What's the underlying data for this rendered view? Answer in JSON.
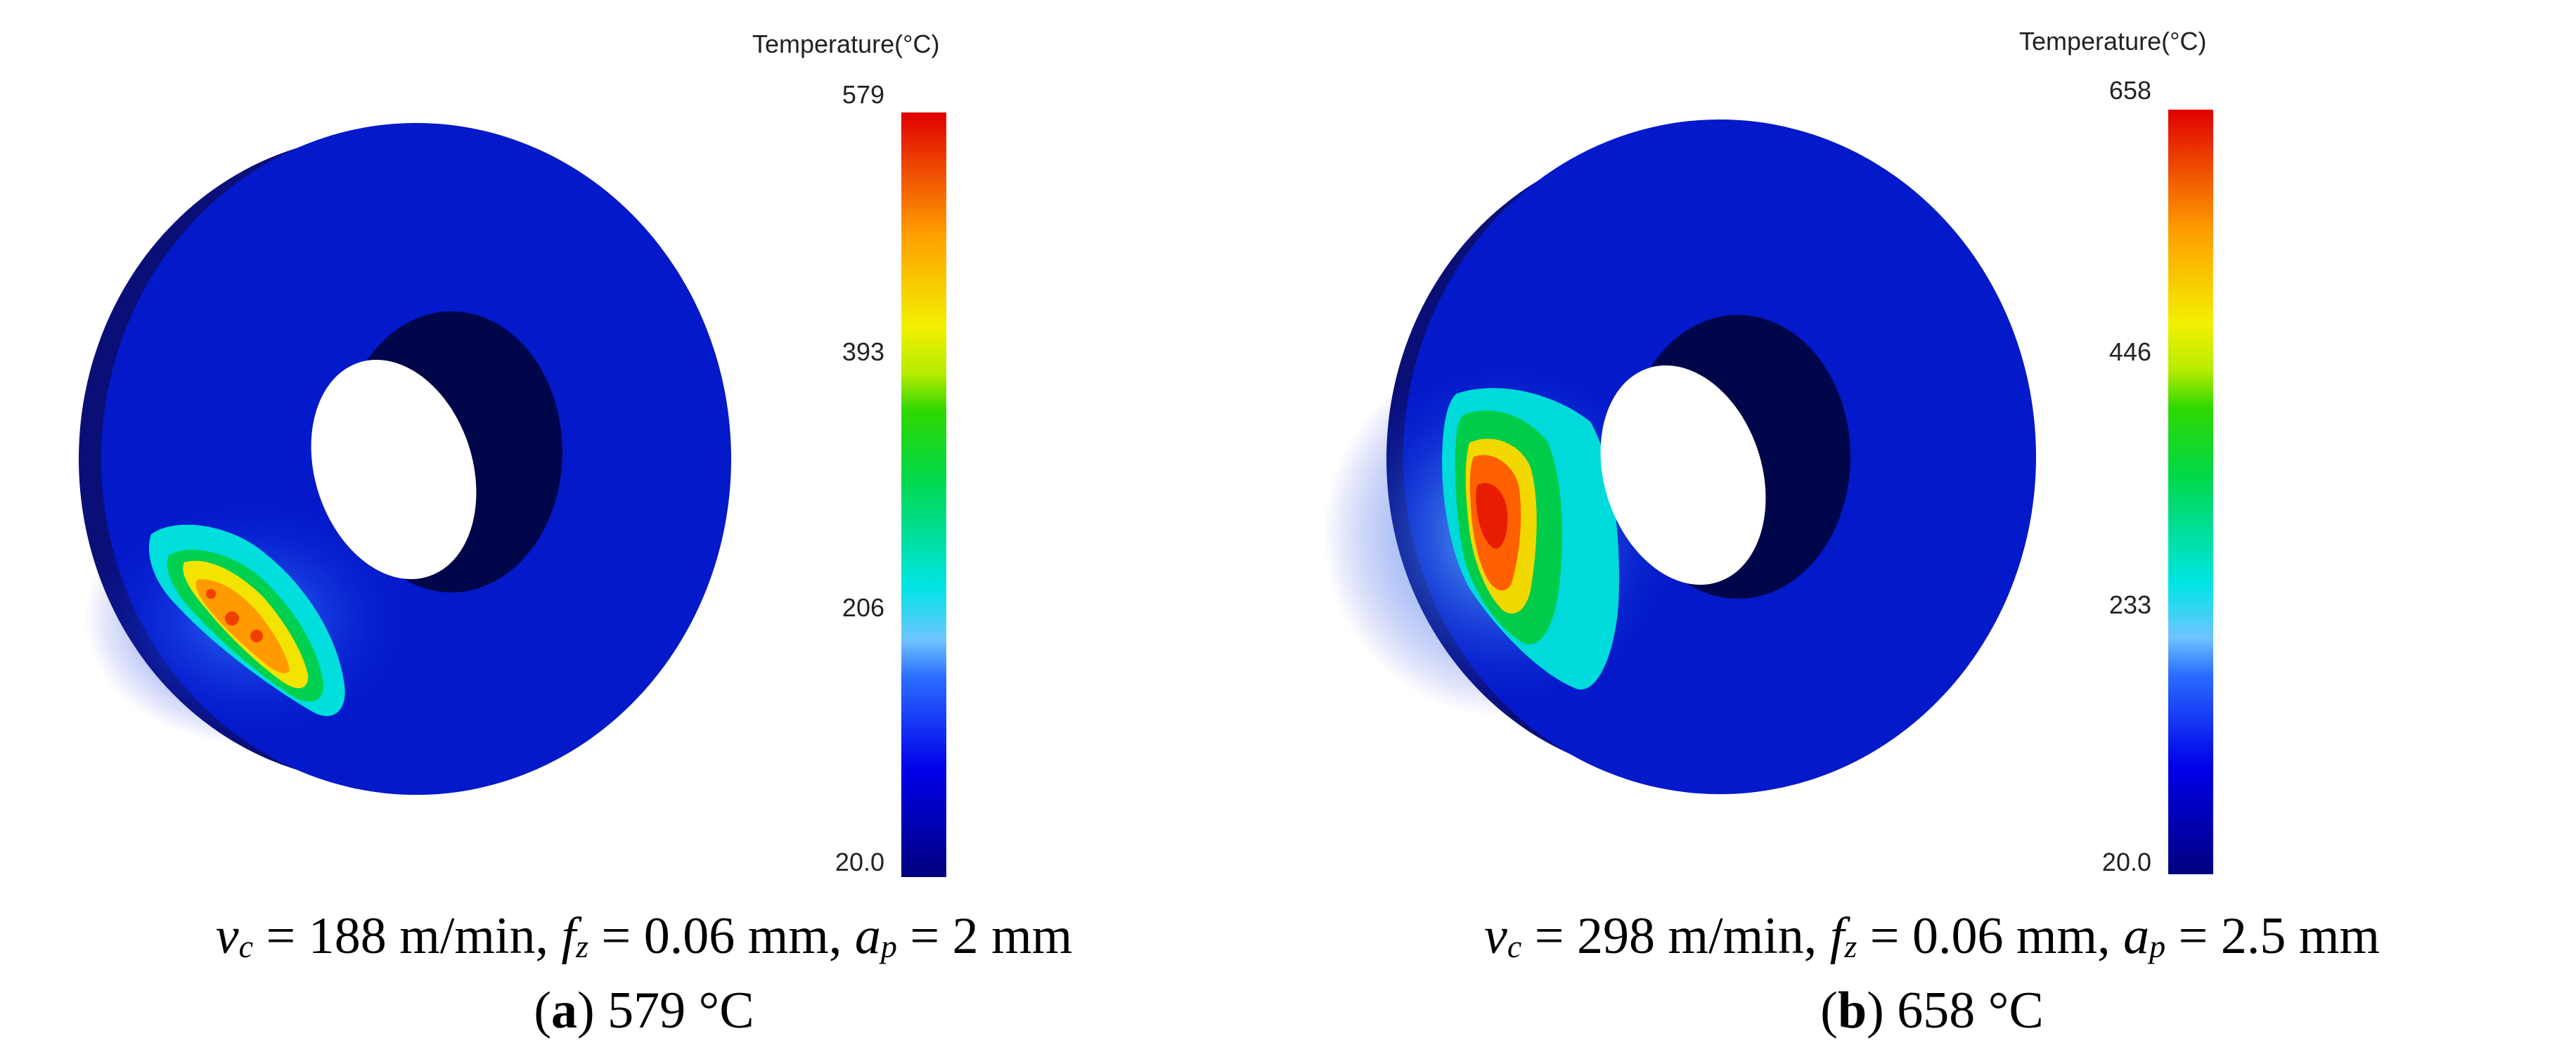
{
  "legend_title": "Temperature(°C)",
  "colors": [
    "#00007f",
    "#0000e8",
    "#2a6cff",
    "#6fc4ff",
    "#00e5e5",
    "#00d84a",
    "#7de800",
    "#f2f000",
    "#ff9f00",
    "#ff2a00",
    "#e00000"
  ],
  "panels": [
    {
      "id": "a",
      "scale_ticks": [
        "579",
        "393",
        "206",
        "20.0"
      ],
      "vc_value": "188",
      "fz_value": "0.06",
      "ap_value": "2",
      "label_letter": "a",
      "label_value": "579 °C"
    },
    {
      "id": "b",
      "scale_ticks": [
        "658",
        "446",
        "233",
        "20.0"
      ],
      "vc_value": "298",
      "fz_value": "0.06",
      "ap_value": "2.5",
      "label_letter": "b",
      "label_value": "658 °C"
    }
  ],
  "caption_symbols": {
    "v": "v",
    "v_sub": "c",
    "f": "f",
    "f_sub": "z",
    "a": "a",
    "a_sub": "p",
    "eq": " = ",
    "vc_unit": " m/min, ",
    "fz_unit": " mm, ",
    "ap_unit": " mm",
    "open_paren": "(",
    "close_paren": ") "
  }
}
